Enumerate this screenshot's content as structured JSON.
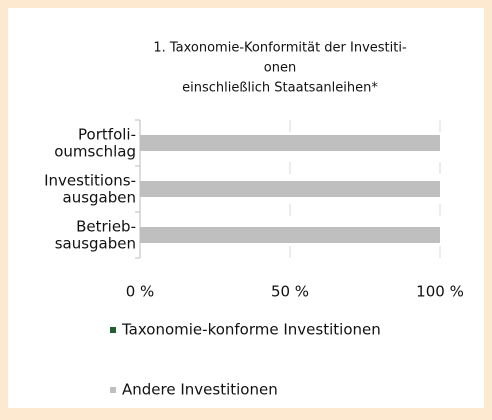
{
  "chart_data": {
    "type": "stacked-barh",
    "title": [
      "1. Taxonomie-Konformität der Investiti-",
      "onen",
      "einschließlich Staatsanleihen*"
    ],
    "categories": [
      [
        "Portfoli-",
        "oumschlag"
      ],
      [
        "Investitions-",
        "ausgaben"
      ],
      [
        "Betrieb-",
        "sausgaben"
      ]
    ],
    "series": [
      {
        "name": "Taxonomie-konforme Investitionen",
        "color": "#1f5f30",
        "values": [
          0,
          0,
          0
        ]
      },
      {
        "name": "Andere Investitionen",
        "color": "#bfbfbf",
        "values": [
          100,
          100,
          100
        ]
      }
    ],
    "xlim": [
      0,
      100
    ],
    "xticks": [
      {
        "value": 0,
        "label": "0 %"
      },
      {
        "value": 50,
        "label": "50 %"
      },
      {
        "value": 100,
        "label": "100 %"
      }
    ],
    "grid": true
  }
}
